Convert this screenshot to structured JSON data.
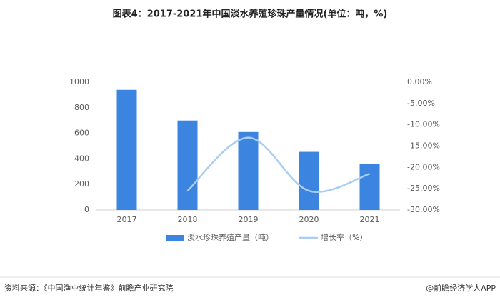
{
  "chart_data": {
    "type": "bar",
    "title": "图表4：2017-2021年中国淡水养殖珍珠产量情况(单位：吨，%)",
    "categories": [
      "2017",
      "2018",
      "2019",
      "2020",
      "2021"
    ],
    "series": [
      {
        "name": "淡水珍珠养殖产量（吨）",
        "type": "bar",
        "color": "#3b84e0",
        "values": [
          940,
          700,
          610,
          455,
          360
        ]
      },
      {
        "name": "增长率（%）",
        "type": "line",
        "axis": "y2",
        "color": "#a9cdf5",
        "values": [
          null,
          -25.5,
          -13,
          -25.5,
          -21.5
        ]
      }
    ],
    "ylim": [
      0,
      1000
    ],
    "yticks": [
      0,
      200,
      400,
      600,
      800,
      1000
    ],
    "y2lim": [
      -30,
      0
    ],
    "y2ticks": [
      {
        "value": 0,
        "label": "0.00%"
      },
      {
        "value": -5,
        "label": "-5.00%"
      },
      {
        "value": -10,
        "label": "-10.00%"
      },
      {
        "value": -15,
        "label": "-15.00%"
      },
      {
        "value": -20,
        "label": "-20.00%"
      },
      {
        "value": -25,
        "label": "-25.00%"
      },
      {
        "value": -30,
        "label": "-30.00%"
      }
    ],
    "grid": false,
    "source": "资料来源：《中国渔业统计年鉴》前瞻产业研究院",
    "credit": "@前瞻经济学人APP"
  }
}
